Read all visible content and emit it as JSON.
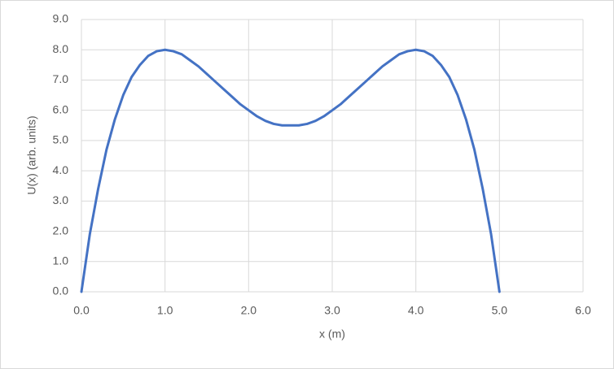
{
  "chart_data": {
    "type": "line",
    "x_label": "x (m)",
    "y_label": "U(x) (arb. units)",
    "x": [
      0,
      0.1,
      0.2,
      0.3,
      0.4,
      0.5,
      0.6,
      0.7,
      0.8,
      0.9,
      1.0,
      1.1,
      1.2,
      1.3,
      1.4,
      1.5,
      1.6,
      1.7,
      1.8,
      1.9,
      2.0,
      2.1,
      2.2,
      2.3,
      2.4,
      2.5,
      2.6,
      2.7,
      2.8,
      2.9,
      3.0,
      3.1,
      3.2,
      3.3,
      3.4,
      3.5,
      3.6,
      3.7,
      3.8,
      3.9,
      4.0,
      4.1,
      4.2,
      4.3,
      4.4,
      4.5,
      4.6,
      4.7,
      4.8,
      4.9,
      5.0
    ],
    "values": [
      0,
      1.9,
      3.4,
      4.7,
      5.7,
      6.5,
      7.1,
      7.5,
      7.8,
      7.95,
      8.0,
      7.95,
      7.85,
      7.65,
      7.45,
      7.2,
      6.95,
      6.7,
      6.45,
      6.2,
      6.0,
      5.8,
      5.65,
      5.55,
      5.5,
      5.5,
      5.5,
      5.55,
      5.65,
      5.8,
      6.0,
      6.2,
      6.45,
      6.7,
      6.95,
      7.2,
      7.45,
      7.65,
      7.85,
      7.95,
      8.0,
      7.95,
      7.8,
      7.5,
      7.1,
      6.5,
      5.7,
      4.7,
      3.4,
      1.9,
      0
    ],
    "color": "#4472c4",
    "xlim": [
      0,
      6
    ],
    "xticks": [
      {
        "value": 0,
        "label": "0.0"
      },
      {
        "value": 1,
        "label": "1.0"
      },
      {
        "value": 2,
        "label": "2.0"
      },
      {
        "value": 3,
        "label": "3.0"
      },
      {
        "value": 4,
        "label": "4.0"
      },
      {
        "value": 5,
        "label": "5.0"
      },
      {
        "value": 6,
        "label": "6.0"
      }
    ],
    "ylim": [
      0,
      9
    ],
    "yticks": [
      {
        "value": 0,
        "label": "0.0"
      },
      {
        "value": 1,
        "label": "1.0"
      },
      {
        "value": 2,
        "label": "2.0"
      },
      {
        "value": 3,
        "label": "3.0"
      },
      {
        "value": 4,
        "label": "4.0"
      },
      {
        "value": 5,
        "label": "5.0"
      },
      {
        "value": 6,
        "label": "6.0"
      },
      {
        "value": 7,
        "label": "7.0"
      },
      {
        "value": 8,
        "label": "8.0"
      },
      {
        "value": 9,
        "label": "9.0"
      }
    ],
    "grid": true
  }
}
